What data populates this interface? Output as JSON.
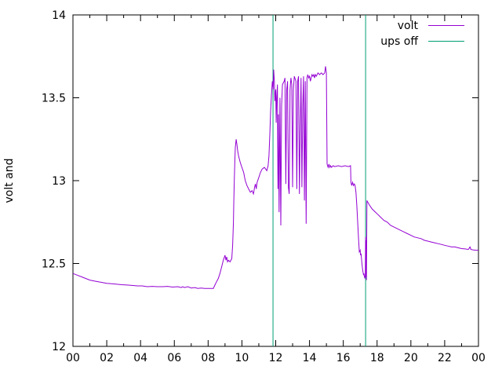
{
  "chart_data": {
    "type": "line",
    "title": "",
    "xlabel": "",
    "ylabel": "volt and",
    "xlim": [
      0,
      24
    ],
    "ylim": [
      12,
      14
    ],
    "grid": false,
    "legend_position": "top-right",
    "x_tick_hours": [
      0,
      2,
      4,
      6,
      8,
      10,
      12,
      14,
      16,
      18,
      20,
      22,
      24
    ],
    "x_tick_labels": [
      "00",
      "02",
      "04",
      "06",
      "08",
      "10",
      "12",
      "14",
      "16",
      "18",
      "20",
      "22",
      "00"
    ],
    "x_minor_hours": [
      1,
      3,
      5,
      7,
      9,
      11,
      13,
      15,
      17,
      19,
      21,
      23
    ],
    "y_ticks": [
      12,
      12.5,
      13,
      13.5,
      14
    ],
    "y_tick_labels": [
      "12",
      "12.5",
      "13",
      "13.5",
      "14"
    ],
    "series": [
      {
        "name": "volt",
        "color": "#9400d3",
        "points": [
          [
            0,
            12.44
          ],
          [
            0.25,
            12.43
          ],
          [
            0.5,
            12.42
          ],
          [
            0.75,
            12.41
          ],
          [
            1,
            12.4
          ],
          [
            1.25,
            12.395
          ],
          [
            1.5,
            12.39
          ],
          [
            1.75,
            12.385
          ],
          [
            2,
            12.38
          ],
          [
            2.3,
            12.378
          ],
          [
            2.6,
            12.375
          ],
          [
            2.9,
            12.372
          ],
          [
            3.2,
            12.37
          ],
          [
            3.5,
            12.368
          ],
          [
            3.8,
            12.365
          ],
          [
            4.1,
            12.365
          ],
          [
            4.4,
            12.36
          ],
          [
            4.7,
            12.362
          ],
          [
            5,
            12.36
          ],
          [
            5.3,
            12.36
          ],
          [
            5.6,
            12.362
          ],
          [
            5.9,
            12.358
          ],
          [
            6.2,
            12.36
          ],
          [
            6.4,
            12.355
          ],
          [
            6.5,
            12.36
          ],
          [
            6.6,
            12.355
          ],
          [
            6.8,
            12.36
          ],
          [
            7,
            12.352
          ],
          [
            7.2,
            12.355
          ],
          [
            7.4,
            12.35
          ],
          [
            7.6,
            12.352
          ],
          [
            7.8,
            12.35
          ],
          [
            8,
            12.35
          ],
          [
            8.31,
            12.35
          ],
          [
            8.4,
            12.37
          ],
          [
            8.5,
            12.39
          ],
          [
            8.6,
            12.41
          ],
          [
            8.7,
            12.44
          ],
          [
            8.8,
            12.48
          ],
          [
            8.9,
            12.52
          ],
          [
            9,
            12.55
          ],
          [
            9.05,
            12.52
          ],
          [
            9.1,
            12.54
          ],
          [
            9.15,
            12.51
          ],
          [
            9.2,
            12.52
          ],
          [
            9.3,
            12.51
          ],
          [
            9.4,
            12.53
          ],
          [
            9.45,
            12.61
          ],
          [
            9.5,
            12.75
          ],
          [
            9.52,
            12.88
          ],
          [
            9.55,
            13
          ],
          [
            9.58,
            13.12
          ],
          [
            9.61,
            13.2
          ],
          [
            9.66,
            13.25
          ],
          [
            9.7,
            13.22
          ],
          [
            9.75,
            13.18
          ],
          [
            9.8,
            13.15
          ],
          [
            9.85,
            13.13
          ],
          [
            9.9,
            13.11
          ],
          [
            10,
            13.08
          ],
          [
            10.1,
            13.05
          ],
          [
            10.2,
            13
          ],
          [
            10.3,
            12.97
          ],
          [
            10.4,
            12.95
          ],
          [
            10.5,
            12.93
          ],
          [
            10.6,
            12.94
          ],
          [
            10.68,
            12.92
          ],
          [
            10.75,
            12.96
          ],
          [
            10.8,
            12.98
          ],
          [
            10.85,
            12.95
          ],
          [
            10.9,
            12.99
          ],
          [
            11,
            13.02
          ],
          [
            11.1,
            13.05
          ],
          [
            11.2,
            13.07
          ],
          [
            11.33,
            13.08
          ],
          [
            11.4,
            13.07
          ],
          [
            11.47,
            13.06
          ],
          [
            11.55,
            13.09
          ],
          [
            11.6,
            13.15
          ],
          [
            11.65,
            13.28
          ],
          [
            11.7,
            13.42
          ],
          [
            11.75,
            13.52
          ],
          [
            11.8,
            13.6
          ],
          [
            11.85,
            13.55
          ],
          [
            11.88,
            13.67
          ],
          [
            11.92,
            13.6
          ],
          [
            11.95,
            13.48
          ],
          [
            12,
            13.55
          ],
          [
            12.03,
            13.35
          ],
          [
            12.06,
            13.5
          ],
          [
            12.1,
            13.58
          ],
          [
            12.13,
            12.95
          ],
          [
            12.16,
            13.4
          ],
          [
            12.2,
            12.81
          ],
          [
            12.25,
            13.5
          ],
          [
            12.3,
            12.73
          ],
          [
            12.35,
            13.45
          ],
          [
            12.4,
            13.58
          ],
          [
            12.5,
            13.6
          ],
          [
            12.55,
            13.62
          ],
          [
            12.6,
            12.98
          ],
          [
            12.65,
            13.55
          ],
          [
            12.7,
            13.6
          ],
          [
            12.75,
            12.96
          ],
          [
            12.8,
            12.92
          ],
          [
            12.85,
            13.55
          ],
          [
            12.9,
            13.62
          ],
          [
            12.95,
            13.58
          ],
          [
            13,
            12.96
          ],
          [
            13.05,
            13.55
          ],
          [
            13.1,
            13.63
          ],
          [
            13.2,
            13.6
          ],
          [
            13.25,
            12.95
          ],
          [
            13.3,
            13.6
          ],
          [
            13.35,
            13.63
          ],
          [
            13.4,
            12.92
          ],
          [
            13.45,
            13.3
          ],
          [
            13.5,
            13.62
          ],
          [
            13.55,
            12.96
          ],
          [
            13.6,
            13.45
          ],
          [
            13.65,
            13.63
          ],
          [
            13.7,
            12.88
          ],
          [
            13.75,
            13.6
          ],
          [
            13.8,
            12.74
          ],
          [
            13.85,
            13.62
          ],
          [
            13.9,
            13.64
          ],
          [
            13.95,
            13.62
          ],
          [
            14,
            13.63
          ],
          [
            14.05,
            13.6
          ],
          [
            14.1,
            13.62
          ],
          [
            14.15,
            13.64
          ],
          [
            14.2,
            13.63
          ],
          [
            14.25,
            13.64
          ],
          [
            14.3,
            13.62
          ],
          [
            14.35,
            13.64
          ],
          [
            14.4,
            13.63
          ],
          [
            14.45,
            13.64
          ],
          [
            14.5,
            13.65
          ],
          [
            14.6,
            13.64
          ],
          [
            14.7,
            13.65
          ],
          [
            14.8,
            13.64
          ],
          [
            14.9,
            13.65
          ],
          [
            14.95,
            13.69
          ],
          [
            15,
            13.65
          ],
          [
            15.04,
            13.1
          ],
          [
            15.1,
            13.08
          ],
          [
            15.15,
            13.1
          ],
          [
            15.2,
            13.08
          ],
          [
            15.25,
            13.09
          ],
          [
            15.3,
            13.08
          ],
          [
            15.4,
            13.09
          ],
          [
            15.5,
            13.085
          ],
          [
            15.7,
            13.09
          ],
          [
            15.9,
            13.085
          ],
          [
            16.1,
            13.09
          ],
          [
            16.3,
            13.085
          ],
          [
            16.43,
            13.09
          ],
          [
            16.45,
            12.99
          ],
          [
            16.5,
            12.97
          ],
          [
            16.55,
            12.99
          ],
          [
            16.6,
            12.97
          ],
          [
            16.65,
            12.98
          ],
          [
            16.7,
            12.97
          ],
          [
            16.75,
            12.93
          ],
          [
            16.8,
            12.85
          ],
          [
            16.85,
            12.75
          ],
          [
            16.9,
            12.65
          ],
          [
            16.95,
            12.57
          ],
          [
            17,
            12.58
          ],
          [
            17.02,
            12.55
          ],
          [
            17.05,
            12.56
          ],
          [
            17.1,
            12.5
          ],
          [
            17.15,
            12.46
          ],
          [
            17.2,
            12.43
          ],
          [
            17.22,
            12.44
          ],
          [
            17.25,
            12.42
          ],
          [
            17.28,
            12.41
          ],
          [
            17.3,
            12.43
          ],
          [
            17.32,
            12.66
          ],
          [
            17.33,
            12.42
          ],
          [
            17.35,
            12.64
          ],
          [
            17.37,
            12.4
          ],
          [
            17.4,
            12.88
          ],
          [
            17.5,
            12.86
          ],
          [
            17.6,
            12.845
          ],
          [
            17.7,
            12.83
          ],
          [
            17.8,
            12.82
          ],
          [
            17.9,
            12.81
          ],
          [
            18,
            12.8
          ],
          [
            18.2,
            12.78
          ],
          [
            18.4,
            12.76
          ],
          [
            18.6,
            12.75
          ],
          [
            18.8,
            12.73
          ],
          [
            19,
            12.72
          ],
          [
            19.2,
            12.71
          ],
          [
            19.4,
            12.7
          ],
          [
            19.6,
            12.69
          ],
          [
            19.8,
            12.68
          ],
          [
            20,
            12.67
          ],
          [
            20.2,
            12.66
          ],
          [
            20.4,
            12.655
          ],
          [
            20.6,
            12.65
          ],
          [
            20.8,
            12.64
          ],
          [
            21,
            12.635
          ],
          [
            21.2,
            12.63
          ],
          [
            21.4,
            12.625
          ],
          [
            21.6,
            12.62
          ],
          [
            21.8,
            12.615
          ],
          [
            22,
            12.61
          ],
          [
            22.2,
            12.605
          ],
          [
            22.4,
            12.6
          ],
          [
            22.6,
            12.6
          ],
          [
            22.8,
            12.595
          ],
          [
            23,
            12.59
          ],
          [
            23.2,
            12.588
          ],
          [
            23.4,
            12.585
          ],
          [
            23.5,
            12.6
          ],
          [
            23.55,
            12.585
          ],
          [
            23.7,
            12.582
          ],
          [
            23.85,
            12.58
          ],
          [
            24,
            12.58
          ]
        ]
      }
    ],
    "vlines": {
      "name": "ups off",
      "color": "#009e73",
      "x": [
        11.84,
        17.32
      ]
    }
  }
}
